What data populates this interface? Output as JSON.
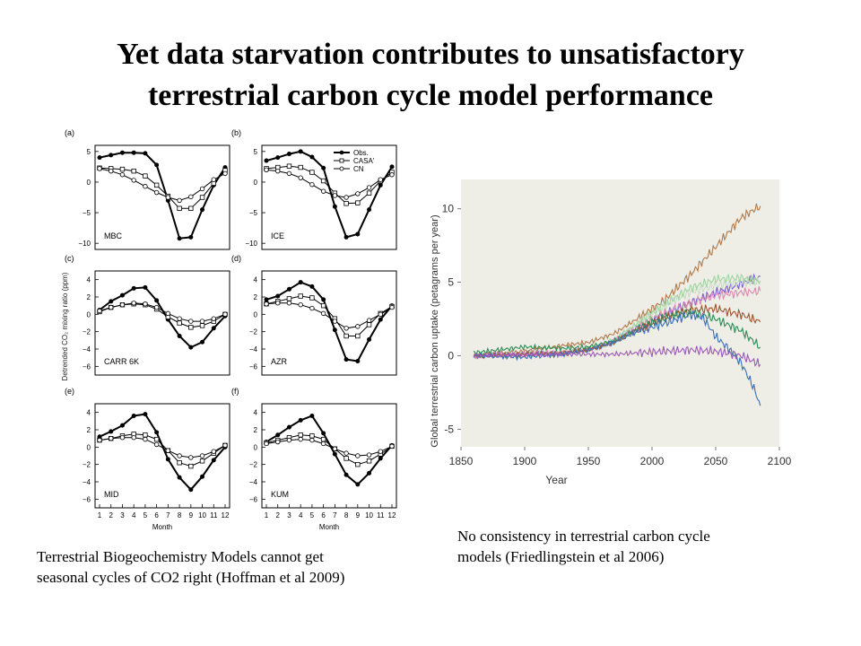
{
  "slide": {
    "title_line1": "Yet data starvation contributes to unsatisfactory",
    "title_line2": "terrestrial carbon cycle model performance",
    "caption_left_line1": "Terrestrial Biogeochemistry Models cannot get",
    "caption_left_line2": "seasonal cycles of CO2 right (Hoffman et al 2009)",
    "caption_right_line1": "No consistency in terrestrial carbon cycle",
    "caption_right_line2": "models (Friedlingstein et al 2006)"
  },
  "chart_data": [
    {
      "type": "line",
      "ylabel": "Detrended CO₂ mixing ratio (ppm)",
      "xlabel": "Month",
      "x": [
        1,
        2,
        3,
        4,
        5,
        6,
        7,
        8,
        9,
        10,
        11,
        12
      ],
      "x_ticks": [
        "1",
        "2",
        "3",
        "4",
        "5",
        "6",
        "7",
        "8",
        "9",
        "10",
        "11",
        "12"
      ],
      "legend": [
        "Obs.",
        "CASA'",
        "CN"
      ],
      "panels": [
        {
          "letter": "(a)",
          "site": "MBC",
          "ylim": [
            -11,
            6
          ],
          "yticks": [
            5,
            0,
            -5,
            -10
          ],
          "yticklabels": [
            "5",
            "0",
            "−5",
            "−10"
          ],
          "series": [
            {
              "name": "Obs.",
              "values": [
                4,
                4.4,
                4.8,
                4.8,
                4.7,
                2.8,
                -3,
                -9.2,
                -9,
                -4.5,
                -0.5,
                2.4
              ]
            },
            {
              "name": "CASA'",
              "values": [
                2.3,
                2.2,
                2.1,
                1.8,
                1,
                -0.5,
                -2.3,
                -4.3,
                -4.3,
                -2.5,
                -0.2,
                1.9
              ]
            },
            {
              "name": "CN",
              "values": [
                2.2,
                1.8,
                1.2,
                0.3,
                -0.7,
                -1.7,
                -2.5,
                -3,
                -2.4,
                -1.1,
                0.4,
                1.4
              ]
            }
          ]
        },
        {
          "letter": "(b)",
          "site": "ICE",
          "ylim": [
            -11,
            6
          ],
          "yticks": [
            5,
            0,
            -5,
            -10
          ],
          "yticklabels": [
            "5",
            "0",
            "−5",
            "−10"
          ],
          "series": [
            {
              "name": "Obs.",
              "values": [
                3.5,
                4,
                4.6,
                5,
                4.1,
                2.3,
                -4,
                -9,
                -8.5,
                -4.5,
                -0.5,
                2.5
              ]
            },
            {
              "name": "CASA'",
              "values": [
                2.2,
                2.4,
                2.6,
                2.4,
                1.6,
                0.2,
                -1.8,
                -3.5,
                -3.4,
                -1.8,
                0.2,
                1.6
              ]
            },
            {
              "name": "CN",
              "values": [
                2,
                1.8,
                1.4,
                0.7,
                -0.4,
                -1.5,
                -2.2,
                -2.5,
                -1.9,
                -0.9,
                0.4,
                1.2
              ]
            }
          ]
        },
        {
          "letter": "(c)",
          "site": "CARR 6K",
          "ylim": [
            -7,
            5
          ],
          "yticks": [
            4,
            2,
            0,
            -2,
            -4,
            -6
          ],
          "yticklabels": [
            "4",
            "2",
            "0",
            "−2",
            "−4",
            "−6"
          ],
          "series": [
            {
              "name": "Obs.",
              "values": [
                0.5,
                1.5,
                2.2,
                3,
                3.1,
                1.6,
                -0.6,
                -2.5,
                -3.8,
                -3.2,
                -1.6,
                -0.2
              ]
            },
            {
              "name": "CASA'",
              "values": [
                0.3,
                0.8,
                1.1,
                1.2,
                1.1,
                0.6,
                -0.3,
                -1,
                -1.5,
                -1.3,
                -0.8,
                0
              ]
            },
            {
              "name": "CN",
              "values": [
                0.4,
                0.8,
                1.1,
                1.3,
                1.2,
                0.8,
                0.1,
                -0.5,
                -0.8,
                -0.8,
                -0.5,
                0
              ]
            }
          ]
        },
        {
          "letter": "(d)",
          "site": "AZR",
          "ylim": [
            -7,
            5
          ],
          "yticks": [
            4,
            2,
            0,
            -2,
            -4,
            -6
          ],
          "yticklabels": [
            "4",
            "2",
            "0",
            "−2",
            "−4",
            "−6"
          ],
          "series": [
            {
              "name": "Obs.",
              "values": [
                1.7,
                2.1,
                2.9,
                3.7,
                3.2,
                1.7,
                -1.8,
                -5.2,
                -5.4,
                -2.9,
                -0.6,
                1
              ]
            },
            {
              "name": "CASA'",
              "values": [
                1.2,
                1.5,
                1.8,
                2.1,
                1.9,
                1,
                -0.5,
                -2.5,
                -2.5,
                -1.2,
                0.1,
                0.9
              ]
            },
            {
              "name": "CN",
              "values": [
                1.2,
                1.3,
                1.3,
                1.1,
                0.7,
                0.1,
                -0.8,
                -1.6,
                -1.4,
                -0.7,
                0,
                0.8
              ]
            }
          ]
        },
        {
          "letter": "(e)",
          "site": "MID",
          "ylim": [
            -7,
            5
          ],
          "yticks": [
            4,
            2,
            0,
            -2,
            -4,
            -6
          ],
          "yticklabels": [
            "4",
            "2",
            "0",
            "−2",
            "−4",
            "−6"
          ],
          "series": [
            {
              "name": "Obs.",
              "values": [
                1.2,
                1.8,
                2.5,
                3.6,
                3.8,
                1.7,
                -1.4,
                -3.5,
                -4.9,
                -3.4,
                -1.5,
                0
              ]
            },
            {
              "name": "CASA'",
              "values": [
                0.8,
                1,
                1.3,
                1.5,
                1.4,
                0.9,
                -0.4,
                -1.8,
                -2.2,
                -1.6,
                -0.7,
                0.2
              ]
            },
            {
              "name": "CN",
              "values": [
                0.8,
                1,
                1.1,
                1.1,
                0.9,
                0.3,
                -0.4,
                -1,
                -1.2,
                -1,
                -0.5,
                0.2
              ]
            }
          ]
        },
        {
          "letter": "(f)",
          "site": "KUM",
          "ylim": [
            -7,
            5
          ],
          "yticks": [
            4,
            2,
            0,
            -2,
            -4,
            -6
          ],
          "yticklabels": [
            "4",
            "2",
            "0",
            "−2",
            "−4",
            "−6"
          ],
          "series": [
            {
              "name": "Obs.",
              "values": [
                0.6,
                1.4,
                2.3,
                3.1,
                3.6,
                1.6,
                -0.8,
                -3.2,
                -4.3,
                -3,
                -1.3,
                0.2
              ]
            },
            {
              "name": "CASA'",
              "values": [
                0.5,
                0.8,
                1.1,
                1.4,
                1.3,
                0.9,
                -0.2,
                -1.3,
                -2,
                -1.6,
                -0.8,
                0.1
              ]
            },
            {
              "name": "CN",
              "values": [
                0.4,
                0.6,
                0.8,
                0.9,
                0.8,
                0.4,
                -0.2,
                -0.7,
                -1,
                -0.9,
                -0.5,
                0.1
              ]
            }
          ]
        }
      ]
    },
    {
      "type": "line",
      "xlabel": "Year",
      "ylabel": "Global terrestrial carbon uptake (petagrams per year)",
      "xlim": [
        1850,
        2100
      ],
      "ylim": [
        -6.2,
        12
      ],
      "xticks": [
        "1850",
        "1900",
        "1950",
        "2000",
        "2050",
        "2100"
      ],
      "yticks": [
        "10",
        "5",
        "0",
        "-5"
      ],
      "ytick_values": [
        10,
        5,
        0,
        -5
      ],
      "background": "#eeeee6",
      "series": [
        {
          "color": "#b07a4c",
          "x": [
            1860,
            1900,
            1930,
            1950,
            1970,
            1990,
            2010,
            2030,
            2050,
            2070,
            2085
          ],
          "values": [
            0,
            0.3,
            0.7,
            0.9,
            1.5,
            2.6,
            3.8,
            5.5,
            7.4,
            9.4,
            10.2
          ]
        },
        {
          "color": "#7a5ad6",
          "x": [
            1860,
            1900,
            1930,
            1950,
            1970,
            1990,
            2010,
            2030,
            2050,
            2070,
            2085
          ],
          "values": [
            0,
            0.1,
            0.2,
            0.4,
            1,
            2,
            2.8,
            3.6,
            4.3,
            4.9,
            5.4
          ]
        },
        {
          "color": "#c8dcc8",
          "x": [
            1860,
            1900,
            1930,
            1950,
            1970,
            1990,
            2010,
            2030,
            2050,
            2070,
            2085
          ],
          "values": [
            0,
            0.1,
            0.2,
            0.4,
            1,
            2.2,
            3.4,
            4.3,
            4.8,
            5,
            5
          ]
        },
        {
          "color": "#9fd49f",
          "x": [
            1860,
            1900,
            1930,
            1950,
            1970,
            1990,
            2010,
            2030,
            2050,
            2070,
            2085
          ],
          "values": [
            0,
            0.1,
            0.2,
            0.4,
            1.1,
            2.3,
            3.5,
            4.6,
            5.2,
            5.3,
            5.1
          ]
        },
        {
          "color": "#d98ab0",
          "x": [
            1860,
            1900,
            1930,
            1950,
            1970,
            1990,
            2010,
            2030,
            2050,
            2070,
            2085
          ],
          "values": [
            0,
            0.1,
            0.2,
            0.4,
            1,
            2,
            2.9,
            3.6,
            4.1,
            4.3,
            4.4
          ]
        },
        {
          "color": "#a0522d",
          "x": [
            1860,
            1900,
            1930,
            1950,
            1970,
            1990,
            2010,
            2030,
            2050,
            2070,
            2085
          ],
          "values": [
            0,
            0.1,
            0.2,
            0.4,
            0.9,
            1.8,
            2.6,
            3.1,
            3.2,
            2.8,
            2.3
          ]
        },
        {
          "color": "#2e8b57",
          "x": [
            1860,
            1900,
            1930,
            1950,
            1970,
            1990,
            2010,
            2030,
            2050,
            2070,
            2085
          ],
          "values": [
            0.2,
            0.6,
            0.5,
            0.6,
            1,
            1.9,
            2.6,
            3,
            2.5,
            1.7,
            0.6
          ]
        },
        {
          "color": "#3a6fb5",
          "x": [
            1860,
            1900,
            1930,
            1950,
            1970,
            1990,
            2010,
            2030,
            2040,
            2050,
            2060,
            2070,
            2080,
            2085
          ],
          "values": [
            0,
            -0.1,
            0.1,
            0.4,
            0.9,
            1.7,
            2.2,
            2.8,
            2.6,
            1.3,
            0.5,
            -0.5,
            -2.2,
            -3.4
          ]
        },
        {
          "color": "#9b59b6",
          "x": [
            1860,
            1900,
            1930,
            1950,
            1970,
            1990,
            2010,
            2030,
            2050,
            2070,
            2085
          ],
          "values": [
            0,
            0.1,
            0.1,
            0.1,
            0.1,
            0.2,
            0.3,
            0.4,
            0.3,
            0,
            -0.6
          ]
        }
      ]
    }
  ]
}
